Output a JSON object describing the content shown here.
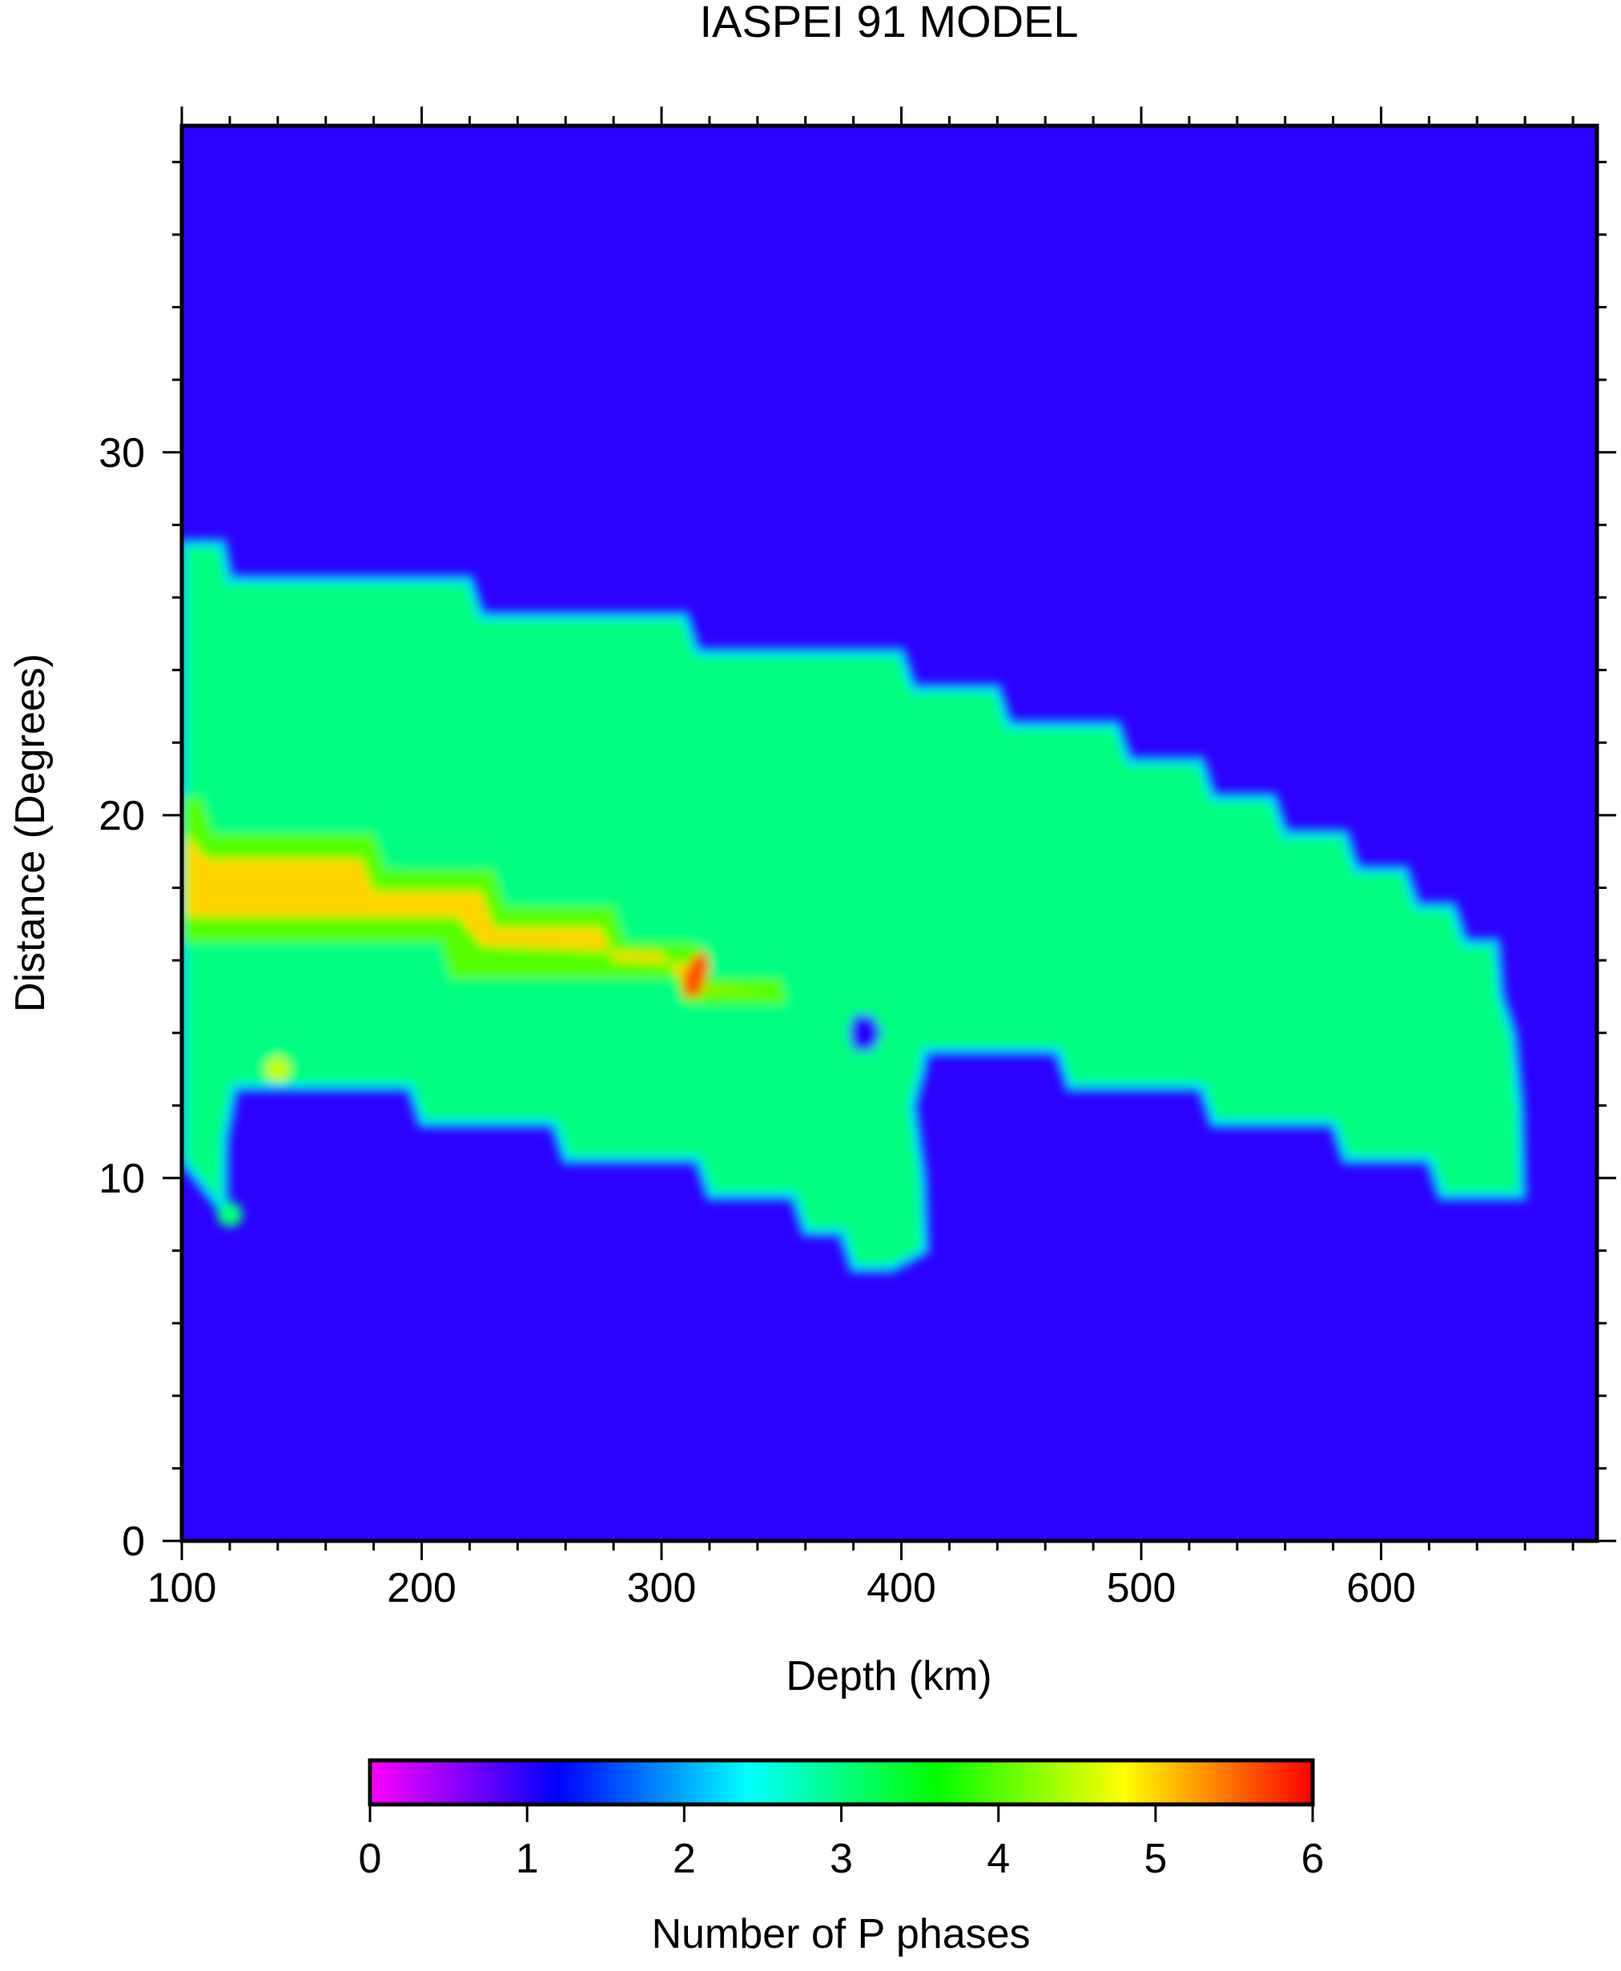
{
  "chart_data": {
    "type": "heatmap",
    "title": "IASPEI 91 MODEL",
    "xlabel": "Depth (km)",
    "ylabel": "Distance (Degrees)",
    "xlim": [
      100,
      690
    ],
    "ylim": [
      0,
      39
    ],
    "x_ticks": [
      100,
      200,
      300,
      400,
      500,
      600
    ],
    "x_tick_labels": [
      "100",
      "200",
      "300",
      "400",
      "500",
      "600"
    ],
    "y_ticks": [
      0,
      10,
      20,
      30
    ],
    "y_tick_labels": [
      "0",
      "10",
      "20",
      "30"
    ],
    "colorbar": {
      "label": "Number of P phases",
      "range": [
        0,
        6
      ],
      "ticks": [
        0,
        1,
        2,
        3,
        4,
        5,
        6
      ],
      "tick_labels": [
        "0",
        "1",
        "2",
        "3",
        "4",
        "5",
        "6"
      ],
      "colors": [
        "#ff00ff",
        "#8000ff",
        "#0000ff",
        "#0080ff",
        "#00ffff",
        "#00ff80",
        "#00ff00",
        "#80ff00",
        "#ffff00",
        "#ff8000",
        "#ff0000"
      ]
    },
    "background_value": 1,
    "regions": [
      {
        "name": "three-phase-region",
        "value": 3,
        "polygon": [
          [
            100,
            27.5
          ],
          [
            117,
            27.5
          ],
          [
            120,
            26.5
          ],
          [
            160,
            26.5
          ],
          [
            220,
            26.5
          ],
          [
            225,
            25.5
          ],
          [
            260,
            25.5
          ],
          [
            310,
            25.5
          ],
          [
            315,
            24.5
          ],
          [
            350,
            24.5
          ],
          [
            400,
            24.5
          ],
          [
            405,
            23.5
          ],
          [
            440,
            23.5
          ],
          [
            445,
            22.5
          ],
          [
            490,
            22.5
          ],
          [
            495,
            21.5
          ],
          [
            525,
            21.5
          ],
          [
            530,
            20.5
          ],
          [
            555,
            20.5
          ],
          [
            560,
            19.5
          ],
          [
            585,
            19.5
          ],
          [
            590,
            18.5
          ],
          [
            610,
            18.5
          ],
          [
            615,
            17.5
          ],
          [
            630,
            17.5
          ],
          [
            635,
            16.5
          ],
          [
            648,
            16.5
          ],
          [
            650,
            15.0
          ],
          [
            655,
            14.0
          ],
          [
            658,
            12.0
          ],
          [
            659,
            9.5
          ],
          [
            653,
            9.5
          ],
          [
            625,
            9.5
          ],
          [
            620,
            10.5
          ],
          [
            585,
            10.5
          ],
          [
            580,
            11.5
          ],
          [
            530,
            11.5
          ],
          [
            525,
            12.5
          ],
          [
            470,
            12.5
          ],
          [
            465,
            13.5
          ],
          [
            410,
            13.5
          ],
          [
            409,
            13.0
          ],
          [
            405,
            12.0
          ],
          [
            409,
            10.0
          ],
          [
            410,
            8.0
          ],
          [
            396,
            7.5
          ],
          [
            380,
            7.5
          ],
          [
            375,
            8.5
          ],
          [
            360,
            8.5
          ],
          [
            355,
            9.5
          ],
          [
            320,
            9.5
          ],
          [
            315,
            10.5
          ],
          [
            260,
            10.5
          ],
          [
            255,
            11.5
          ],
          [
            200,
            11.5
          ],
          [
            195,
            12.5
          ],
          [
            170,
            12.5
          ],
          [
            168,
            12.5
          ],
          [
            122,
            12.5
          ],
          [
            118,
            11.0
          ],
          [
            118,
            9.0
          ],
          [
            112,
            9.5
          ],
          [
            100,
            10.5
          ]
        ]
      },
      {
        "name": "four-phase-band",
        "value": 4,
        "polygon": [
          [
            100,
            20.5
          ],
          [
            108,
            20.5
          ],
          [
            113,
            19.5
          ],
          [
            180,
            19.5
          ],
          [
            185,
            18.5
          ],
          [
            230,
            18.5
          ],
          [
            235,
            17.5
          ],
          [
            280,
            17.5
          ],
          [
            285,
            16.5
          ],
          [
            315,
            16.5
          ],
          [
            320,
            15.5
          ],
          [
            350,
            15.5
          ],
          [
            352,
            14.8
          ],
          [
            310,
            14.8
          ],
          [
            305,
            15.5
          ],
          [
            212,
            15.5
          ],
          [
            208,
            16.5
          ],
          [
            100,
            16.5
          ]
        ]
      },
      {
        "name": "five-phase-core",
        "value": 5,
        "polygon": [
          [
            102,
            19.5
          ],
          [
            110,
            18.8
          ],
          [
            175,
            18.8
          ],
          [
            180,
            17.9
          ],
          [
            225,
            17.9
          ],
          [
            230,
            16.9
          ],
          [
            275,
            16.9
          ],
          [
            280,
            16.0
          ],
          [
            310,
            15.9
          ],
          [
            315,
            15.2
          ],
          [
            345,
            15.1
          ],
          [
            310,
            15.3
          ],
          [
            300,
            16.2
          ],
          [
            225,
            16.4
          ],
          [
            215,
            17.2
          ],
          [
            102,
            17.2
          ]
        ]
      },
      {
        "name": "six-phase-spot",
        "value": 5.6,
        "polygon": [
          [
            309,
            15.0
          ],
          [
            316,
            15.0
          ],
          [
            320,
            15.8
          ],
          [
            318,
            16.3
          ],
          [
            312,
            16.0
          ],
          [
            309,
            15.5
          ]
        ]
      },
      {
        "name": "two-phase-hole",
        "value": 1,
        "polygon": [
          [
            380,
            14.5
          ],
          [
            388,
            14.5
          ],
          [
            392,
            14.0
          ],
          [
            388,
            13.5
          ],
          [
            380,
            13.5
          ],
          [
            378,
            14.0
          ]
        ]
      }
    ],
    "spots": [
      {
        "name": "isolated-spot-4.5",
        "x": 140,
        "y": 13.0,
        "value": 4.5
      },
      {
        "name": "isolated-spot-3",
        "x": 120,
        "y": 9.0,
        "value": 3
      }
    ]
  }
}
